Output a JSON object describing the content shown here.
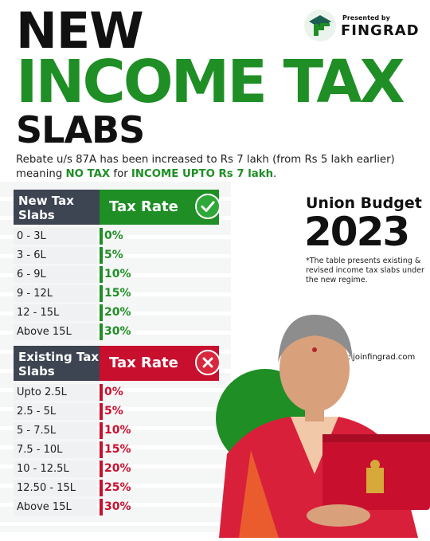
{
  "title": {
    "line1": "NEW",
    "line2": "INCOME TAX",
    "line3": "SLABS"
  },
  "brand": {
    "presented_by": "Presented by",
    "name": "FINGRAD",
    "logo_icon": "fingrad-logo-icon"
  },
  "rebate": {
    "part1": "Rebate u/s 87A has been increased to Rs 7 lakh (from Rs 5 lakh earlier) meaning ",
    "hl1": "NO TAX",
    "part2": " for ",
    "hl2": "INCOME UPTO Rs 7 lakh",
    "part3": "."
  },
  "new_table": {
    "header_left": "New Tax Slabs",
    "header_right": "Tax Rate",
    "badge_icon": "check-icon",
    "accent": "#1e8e25",
    "rows": [
      {
        "slab": "0 - 3L",
        "rate": "0%"
      },
      {
        "slab": "3 - 6L",
        "rate": "5%"
      },
      {
        "slab": "6 - 9L",
        "rate": "10%"
      },
      {
        "slab": "9 - 12L",
        "rate": "15%"
      },
      {
        "slab": "12 - 15L",
        "rate": "20%"
      },
      {
        "slab": "Above 15L",
        "rate": "30%"
      }
    ]
  },
  "existing_table": {
    "header_left": "Existing Tax Slabs",
    "header_right": "Tax Rate",
    "badge_icon": "cross-icon",
    "accent": "#c8102e",
    "rows": [
      {
        "slab": "Upto 2.5L",
        "rate": "0%"
      },
      {
        "slab": "2.5 - 5L",
        "rate": "5%"
      },
      {
        "slab": "5 - 7.5L",
        "rate": "10%"
      },
      {
        "slab": "7.5 - 10L",
        "rate": "15%"
      },
      {
        "slab": "10 - 12.5L",
        "rate": "20%"
      },
      {
        "slab": "12.50 - 15L",
        "rate": "25%"
      },
      {
        "slab": "Above 15L",
        "rate": "30%"
      }
    ]
  },
  "budget": {
    "line1": "Union Budget",
    "year": "2023"
  },
  "note": "*The table presents existing & revised income tax slabs under the new regime.",
  "visit": "visit: joinfingrad.com",
  "colors": {
    "green": "#1e8e25",
    "red": "#c8102e",
    "header_dark": "#3d4452"
  }
}
